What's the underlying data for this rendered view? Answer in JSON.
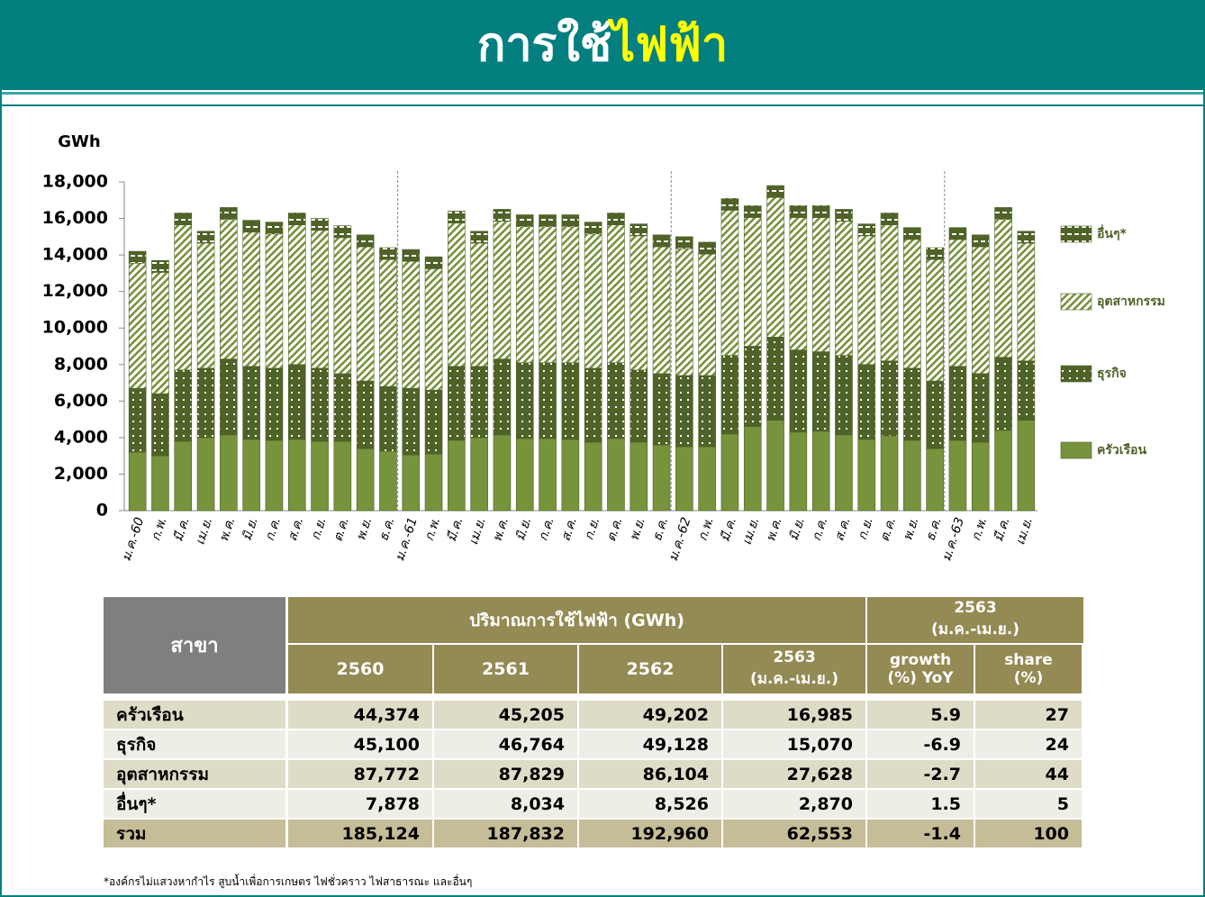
{
  "header": {
    "title_part1": "การใช้",
    "title_part2": "ไฟฟ้า"
  },
  "chart_data": {
    "type": "stacked_bar",
    "y_label": "GWh",
    "categories": [
      "ม.ค.-60",
      "ก.พ.",
      "มี.ค.",
      "เม.ย.",
      "พ.ค.",
      "มิ.ย.",
      "ก.ค.",
      "ส.ค.",
      "ก.ย.",
      "ต.ค.",
      "พ.ย.",
      "ธ.ค.",
      "ม.ค.-61",
      "ก.พ.",
      "มี.ค.",
      "เม.ย.",
      "พ.ค.",
      "มิ.ย.",
      "ก.ค.",
      "ส.ค.",
      "ก.ย.",
      "ต.ค.",
      "พ.ย.",
      "ธ.ค.",
      "ม.ค.-62",
      "ก.พ.",
      "มี.ค.",
      "เม.ย.",
      "พ.ค.",
      "มิ.ย.",
      "ก.ค.",
      "ส.ค.",
      "ก.ย.",
      "ต.ค.",
      "พ.ย.",
      "ธ.ค.",
      "ม.ค.-63",
      "ก.พ.",
      "มี.ค.",
      "เม.ย."
    ],
    "series": [
      {
        "name": "ครัวเรือน",
        "color": "#77933c",
        "values": [
          3200,
          3000,
          3800,
          4000,
          4150,
          3900,
          3850,
          3900,
          3800,
          3800,
          3400,
          3250,
          3050,
          3100,
          3850,
          4000,
          4150,
          3950,
          3950,
          3900,
          3750,
          3950,
          3750,
          3600,
          3500,
          3500,
          4200,
          4600,
          4950,
          4300,
          4350,
          4150,
          3900,
          4100,
          3850,
          3400,
          3850,
          3750,
          4400,
          4950
        ]
      },
      {
        "name": "ธุรกิจ",
        "color": "#4f6228",
        "values": [
          3500,
          3400,
          3900,
          3800,
          4150,
          4000,
          3950,
          4100,
          4000,
          3700,
          3700,
          3550,
          3650,
          3500,
          4050,
          3900,
          4150,
          4150,
          4150,
          4200,
          4050,
          4150,
          3950,
          3900,
          3900,
          3900,
          4300,
          4400,
          4550,
          4500,
          4350,
          4350,
          4100,
          4100,
          3950,
          3700,
          4050,
          3750,
          4000,
          3250
        ]
      },
      {
        "name": "อุตสาหกรรม",
        "color": "#77933c",
        "values": [
          6850,
          6650,
          7950,
          6850,
          7650,
          7350,
          7350,
          7650,
          7550,
          7450,
          7350,
          6950,
          6950,
          6650,
          7850,
          6750,
          7550,
          7450,
          7450,
          7450,
          7350,
          7550,
          7350,
          6950,
          6950,
          6650,
          7950,
          7050,
          7650,
          7250,
          7350,
          7350,
          7050,
          7450,
          7050,
          6650,
          6950,
          6950,
          7550,
          6450
        ]
      },
      {
        "name": "อื่นๆ*",
        "color": "#4f6228",
        "values": [
          650,
          650,
          650,
          650,
          650,
          650,
          650,
          650,
          650,
          650,
          650,
          650,
          650,
          650,
          650,
          650,
          650,
          650,
          650,
          650,
          650,
          650,
          650,
          650,
          650,
          650,
          650,
          650,
          650,
          650,
          650,
          650,
          650,
          650,
          650,
          650,
          650,
          650,
          650,
          650
        ]
      }
    ],
    "ylim": [
      0,
      18000
    ],
    "yticks": [
      0,
      {
        "value": 2000,
        "label": "2,000"
      },
      {
        "value": 4000,
        "label": "4,000"
      },
      {
        "value": 6000,
        "label": "6,000"
      },
      {
        "value": 8000,
        "label": "8,000"
      },
      {
        "value": 10000,
        "label": "10,000"
      },
      {
        "value": 12000,
        "label": "12,000"
      },
      {
        "value": 14000,
        "label": "14,000"
      },
      {
        "value": 16000,
        "label": "16,000"
      },
      {
        "value": 18000,
        "label": "18,000"
      }
    ],
    "legend": "right"
  },
  "table": {
    "branch_header": "สาขา",
    "group_header": "ปริมาณการใช้ไฟฟ้า (GWh)",
    "period_header": [
      "2563",
      "(ม.ค.-เม.ย.)"
    ],
    "columns": [
      [
        "2560"
      ],
      [
        "2561"
      ],
      [
        "2562"
      ],
      [
        "2563",
        "(ม.ค.-เม.ย.)"
      ],
      [
        "growth",
        "(%) YoY"
      ],
      [
        "share",
        "(%)"
      ]
    ],
    "rows": [
      [
        "ครัวเรือน",
        "44,374",
        "45,205",
        "49,202",
        "16,985",
        "5.9",
        "27"
      ],
      [
        "ธุรกิจ",
        "45,100",
        "46,764",
        "49,128",
        "15,070",
        "-6.9",
        "24"
      ],
      [
        "อุตสาหกรรม",
        "87,772",
        "87,829",
        "86,104",
        "27,628",
        "-2.7",
        "44"
      ],
      [
        "อื่นๆ*",
        "7,878",
        "8,034",
        "8,526",
        "2,870",
        "1.5",
        "5"
      ],
      [
        "รวม",
        "185,124",
        "187,832",
        "192,960",
        "62,553",
        "-1.4",
        "100"
      ]
    ]
  },
  "footnote": "*องค์กรไม่แสวงหากำไร สูบน้ำเพื่อการเกษตร ไฟชั่วคราว ไฟสาธารณะ และอื่นๆ"
}
